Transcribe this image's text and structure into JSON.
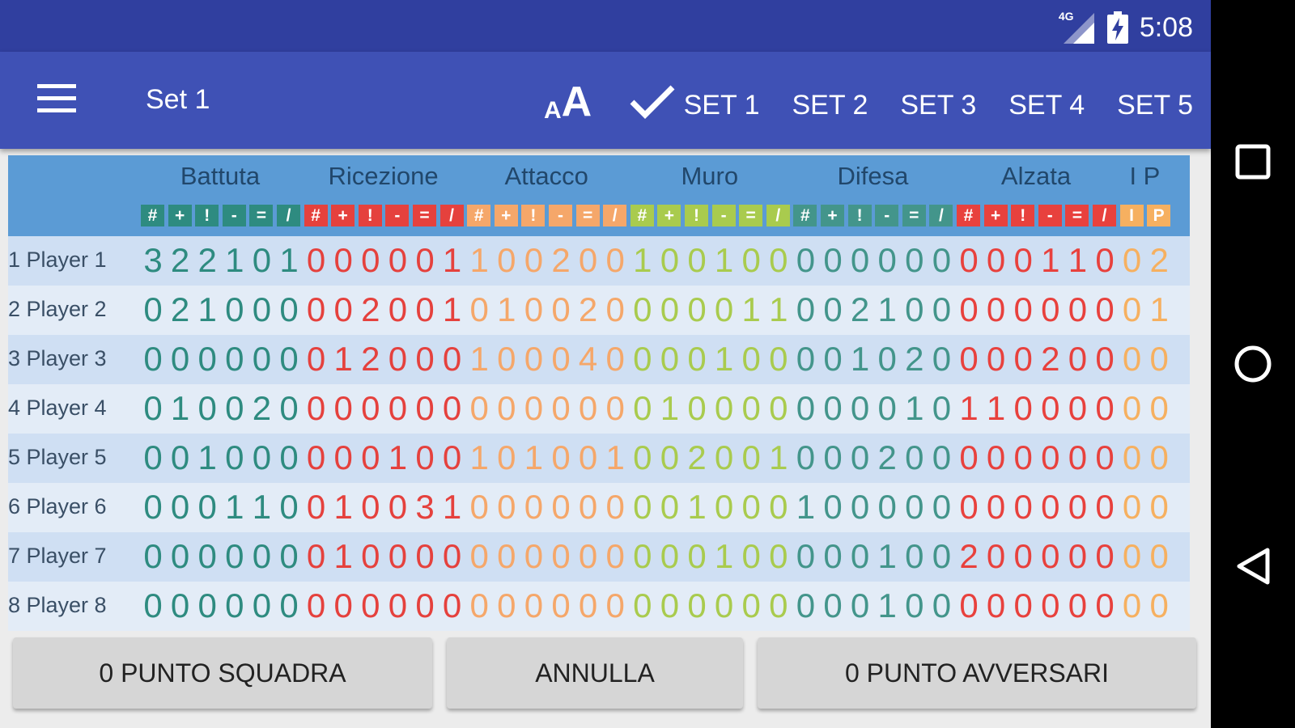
{
  "status_bar": {
    "time": "5:08",
    "network_type": "4G",
    "signal_icon": "signal-icon",
    "battery_icon": "battery-charging-icon"
  },
  "toolbar": {
    "title": "Set 1",
    "menu_icon": "hamburger-menu-icon",
    "font_size_icon": "font-size-icon",
    "check_icon": "check-icon",
    "sets": [
      "SET 1",
      "SET 2",
      "SET 3",
      "SET 4",
      "SET 5"
    ],
    "selected_set": "SET 1"
  },
  "colors": {
    "statusbar": "#303f9f",
    "toolbar": "#3f51b5",
    "header": "#5b9bd5",
    "battuta": "#2e8b80",
    "ricezione": "#e5413d",
    "attacco": "#f5a76a",
    "muro": "#a9cb4e",
    "difesa": "#43958b",
    "alzata": "#e8413d",
    "ip": "#f6b060"
  },
  "categories": [
    {
      "name": "Battuta",
      "symbols": [
        "#",
        "+",
        "!",
        "-",
        "=",
        "/"
      ]
    },
    {
      "name": "Ricezione",
      "symbols": [
        "#",
        "+",
        "!",
        "-",
        "=",
        "/"
      ]
    },
    {
      "name": "Attacco",
      "symbols": [
        "#",
        "+",
        "!",
        "-",
        "=",
        "/"
      ]
    },
    {
      "name": "Muro",
      "symbols": [
        "#",
        "+",
        "!",
        "-",
        "=",
        "/"
      ]
    },
    {
      "name": "Difesa",
      "symbols": [
        "#",
        "+",
        "!",
        "-",
        "=",
        "/"
      ]
    },
    {
      "name": "Alzata",
      "symbols": [
        "#",
        "+",
        "!",
        "-",
        "=",
        "/"
      ]
    },
    {
      "name": "I P",
      "symbols": [
        "I",
        "P"
      ]
    }
  ],
  "players": [
    {
      "label": "1 Player 1",
      "values": [
        3,
        2,
        2,
        1,
        0,
        1,
        0,
        0,
        0,
        0,
        0,
        1,
        1,
        0,
        0,
        2,
        0,
        0,
        1,
        0,
        0,
        1,
        0,
        0,
        0,
        0,
        0,
        0,
        0,
        0,
        0,
        0,
        0,
        1,
        1,
        0,
        0,
        2
      ]
    },
    {
      "label": "2 Player 2",
      "values": [
        0,
        2,
        1,
        0,
        0,
        0,
        0,
        0,
        2,
        0,
        0,
        1,
        0,
        1,
        0,
        0,
        2,
        0,
        0,
        0,
        0,
        0,
        1,
        1,
        0,
        0,
        2,
        1,
        0,
        0,
        0,
        0,
        0,
        0,
        0,
        0,
        0,
        1
      ]
    },
    {
      "label": "3 Player 3",
      "values": [
        0,
        0,
        0,
        0,
        0,
        0,
        0,
        1,
        2,
        0,
        0,
        0,
        1,
        0,
        0,
        0,
        4,
        0,
        0,
        0,
        0,
        1,
        0,
        0,
        0,
        0,
        1,
        0,
        2,
        0,
        0,
        0,
        0,
        2,
        0,
        0,
        0,
        0
      ]
    },
    {
      "label": "4 Player 4",
      "values": [
        0,
        1,
        0,
        0,
        2,
        0,
        0,
        0,
        0,
        0,
        0,
        0,
        0,
        0,
        0,
        0,
        0,
        0,
        0,
        1,
        0,
        0,
        0,
        0,
        0,
        0,
        0,
        0,
        1,
        0,
        1,
        1,
        0,
        0,
        0,
        0,
        0,
        0
      ]
    },
    {
      "label": "5 Player 5",
      "values": [
        0,
        0,
        1,
        0,
        0,
        0,
        0,
        0,
        0,
        1,
        0,
        0,
        1,
        0,
        1,
        0,
        0,
        1,
        0,
        0,
        2,
        0,
        0,
        1,
        0,
        0,
        0,
        2,
        0,
        0,
        0,
        0,
        0,
        0,
        0,
        0,
        0,
        0
      ]
    },
    {
      "label": "6 Player 6",
      "values": [
        0,
        0,
        0,
        1,
        1,
        0,
        0,
        1,
        0,
        0,
        3,
        1,
        0,
        0,
        0,
        0,
        0,
        0,
        0,
        0,
        1,
        0,
        0,
        0,
        1,
        0,
        0,
        0,
        0,
        0,
        0,
        0,
        0,
        0,
        0,
        0,
        0,
        0
      ]
    },
    {
      "label": "7 Player 7",
      "values": [
        0,
        0,
        0,
        0,
        0,
        0,
        0,
        1,
        0,
        0,
        0,
        0,
        0,
        0,
        0,
        0,
        0,
        0,
        0,
        0,
        0,
        1,
        0,
        0,
        0,
        0,
        0,
        1,
        0,
        0,
        2,
        0,
        0,
        0,
        0,
        0,
        0,
        0
      ]
    },
    {
      "label": "8 Player 8",
      "values": [
        0,
        0,
        0,
        0,
        0,
        0,
        0,
        0,
        0,
        0,
        0,
        0,
        0,
        0,
        0,
        0,
        0,
        0,
        0,
        0,
        0,
        0,
        0,
        0,
        0,
        0,
        0,
        1,
        0,
        0,
        0,
        0,
        0,
        0,
        0,
        0,
        0,
        0
      ]
    }
  ],
  "buttons": {
    "team_point": "0 PUNTO SQUADRA",
    "undo": "ANNULLA",
    "opponent_point": "0 PUNTO AVVERSARI"
  },
  "nav": {
    "recents_icon": "recents-square-icon",
    "home_icon": "home-circle-icon",
    "back_icon": "back-triangle-icon"
  }
}
